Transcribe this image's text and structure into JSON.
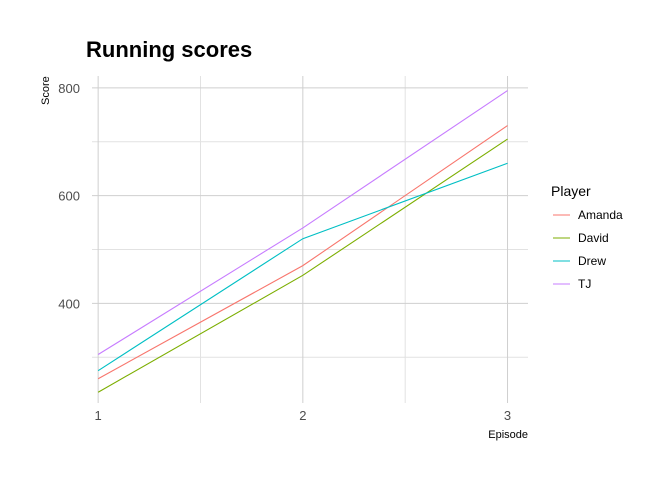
{
  "chart_data": {
    "type": "line",
    "title": "Running scores",
    "xlabel": "Episode",
    "ylabel": "Score",
    "x": [
      1,
      2,
      3
    ],
    "x_ticks": [
      "1",
      "2",
      "3"
    ],
    "y_ticks": [
      "400",
      "600",
      "800"
    ],
    "xlim": [
      0.97,
      3.1
    ],
    "ylim": [
      215,
      822
    ],
    "grid": true,
    "legend": {
      "title": "Player",
      "position": "right"
    },
    "series": [
      {
        "name": "Amanda",
        "color": "#F8766D",
        "values": [
          260,
          470,
          730
        ]
      },
      {
        "name": "David",
        "color": "#7CAE00",
        "values": [
          235,
          452,
          705
        ]
      },
      {
        "name": "Drew",
        "color": "#00BFC4",
        "values": [
          275,
          520,
          660
        ]
      },
      {
        "name": "TJ",
        "color": "#C77CFF",
        "values": [
          305,
          540,
          795
        ]
      }
    ]
  }
}
